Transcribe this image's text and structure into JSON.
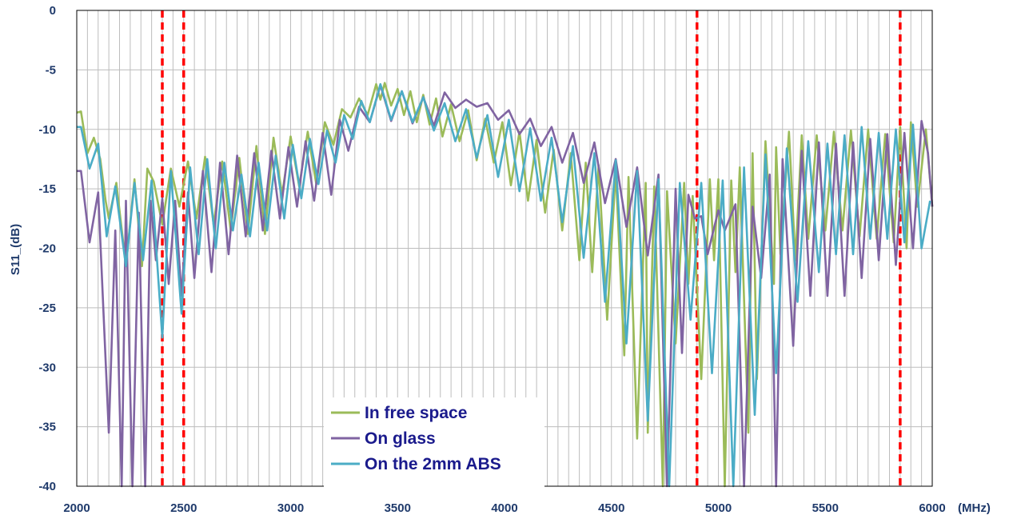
{
  "chart_data": {
    "type": "line",
    "title": "",
    "xlabel": "",
    "x_unit": "(MHz)",
    "ylabel": "S11_(dB)",
    "xlim": [
      2000,
      6000
    ],
    "ylim": [
      -40,
      0
    ],
    "x_ticks": [
      2000,
      2500,
      3000,
      3500,
      4000,
      4500,
      5000,
      5500,
      6000
    ],
    "y_ticks": [
      0,
      -5,
      -10,
      -15,
      -20,
      -25,
      -30,
      -35,
      -40
    ],
    "x_tick_labels": [
      "2000",
      "2500",
      "3000",
      "3500",
      "4000",
      "4500",
      "5000",
      "5500",
      "6000"
    ],
    "y_tick_labels": [
      "0",
      "-5",
      "-10",
      "-15",
      "-20",
      "-25",
      "-30",
      "-35",
      "-40"
    ],
    "minor_x_gridline_step": 50,
    "grid": true,
    "legend_position": "bottom-center",
    "reference_lines": [
      {
        "x": 2400,
        "color": "#ff0000",
        "style": "dashed"
      },
      {
        "x": 2500,
        "color": "#ff0000",
        "style": "dashed"
      },
      {
        "x": 4900,
        "color": "#ff0000",
        "style": "dashed"
      },
      {
        "x": 5850,
        "color": "#ff0000",
        "style": "dashed"
      }
    ],
    "series": [
      {
        "name": "In free space",
        "color": "#9bbb59",
        "x": [
          2000,
          2020,
          2050,
          2080,
          2110,
          2135,
          2150,
          2185,
          2230,
          2270,
          2305,
          2330,
          2360,
          2400,
          2440,
          2480,
          2520,
          2560,
          2600,
          2640,
          2680,
          2720,
          2760,
          2800,
          2840,
          2880,
          2920,
          2960,
          3000,
          3040,
          3080,
          3120,
          3160,
          3200,
          3240,
          3280,
          3320,
          3360,
          3400,
          3420,
          3440,
          3470,
          3500,
          3530,
          3560,
          3590,
          3620,
          3650,
          3680,
          3710,
          3750,
          3790,
          3830,
          3870,
          3910,
          3950,
          3990,
          4030,
          4070,
          4110,
          4150,
          4190,
          4230,
          4270,
          4310,
          4350,
          4380,
          4410,
          4440,
          4480,
          4520,
          4560,
          4580,
          4620,
          4660,
          4670,
          4700,
          4740,
          4760,
          4800,
          4840,
          4860,
          4880,
          4920,
          4960,
          4980,
          5000,
          5030,
          5060,
          5080,
          5100,
          5140,
          5160,
          5180,
          5220,
          5260,
          5270,
          5290,
          5330,
          5360,
          5390,
          5420,
          5460,
          5500,
          5540,
          5580,
          5620,
          5660,
          5700,
          5740,
          5780,
          5820,
          5850,
          5880,
          5900,
          5930,
          5970,
          6000
        ],
        "y": [
          -8.6,
          -8.5,
          -12,
          -10.7,
          -12.5,
          -16,
          -17.5,
          -14.5,
          -21.5,
          -14.2,
          -21.5,
          -13.3,
          -14.4,
          -18,
          -13.3,
          -16.5,
          -12.7,
          -17.5,
          -12.3,
          -18,
          -12.7,
          -18.5,
          -12.4,
          -18.8,
          -11.4,
          -18.8,
          -10.7,
          -15.5,
          -10.6,
          -14.8,
          -10.2,
          -14.6,
          -9.4,
          -11.3,
          -8.3,
          -9,
          -7.4,
          -8.8,
          -6.2,
          -7.5,
          -6.1,
          -8,
          -6.6,
          -8.8,
          -6.8,
          -9.4,
          -7.1,
          -9.6,
          -7.4,
          -10.6,
          -7.9,
          -11,
          -8.4,
          -12.6,
          -9.1,
          -12.8,
          -9.4,
          -14.7,
          -10.2,
          -16,
          -10.9,
          -17,
          -11.7,
          -18.5,
          -12,
          -21,
          -12.8,
          -22,
          -13,
          -26,
          -13.5,
          -29,
          -14,
          -36,
          -14.5,
          -35.5,
          -14.8,
          -40,
          -15.2,
          -28,
          -14.5,
          -23,
          -15.6,
          -31,
          -14.2,
          -21,
          -14.2,
          -40,
          -14.3,
          -22,
          -13.2,
          -35.5,
          -12,
          -31,
          -11,
          -23,
          -11.5,
          -20.5,
          -10.2,
          -21,
          -10.5,
          -19.2,
          -10.5,
          -18.5,
          -10.2,
          -18.5,
          -10.1,
          -19,
          -10,
          -19.2,
          -10.4,
          -19.5,
          -9.8,
          -20,
          -9.4,
          -16.5,
          -10,
          -16.5
        ]
      },
      {
        "name": "On glass",
        "color": "#8064a2",
        "x": [
          2000,
          2020,
          2060,
          2100,
          2150,
          2180,
          2210,
          2230,
          2260,
          2290,
          2320,
          2345,
          2370,
          2400,
          2430,
          2460,
          2490,
          2520,
          2550,
          2590,
          2630,
          2670,
          2710,
          2750,
          2790,
          2830,
          2870,
          2910,
          2950,
          2990,
          3030,
          3070,
          3110,
          3150,
          3190,
          3230,
          3270,
          3320,
          3370,
          3420,
          3470,
          3520,
          3570,
          3620,
          3670,
          3720,
          3770,
          3820,
          3870,
          3920,
          3970,
          4020,
          4070,
          4120,
          4170,
          4220,
          4270,
          4320,
          4370,
          4420,
          4470,
          4520,
          4570,
          4620,
          4670,
          4720,
          4760,
          4800,
          4830,
          4860,
          4890,
          4920,
          4950,
          5000,
          5030,
          5080,
          5120,
          5160,
          5200,
          5240,
          5270,
          5300,
          5350,
          5390,
          5430,
          5470,
          5510,
          5550,
          5590,
          5630,
          5670,
          5710,
          5750,
          5790,
          5830,
          5870,
          5910,
          5950,
          5980,
          6000
        ],
        "y": [
          -13.5,
          -13.5,
          -19.5,
          -15.3,
          -35.5,
          -18.5,
          -40,
          -16,
          -40,
          -17,
          -40,
          -16,
          -21,
          -15.8,
          -23,
          -16,
          -24,
          -15.3,
          -22.5,
          -13.5,
          -22,
          -12.8,
          -20.5,
          -12.2,
          -19,
          -12,
          -18.5,
          -11.8,
          -17.5,
          -11.5,
          -16.5,
          -11,
          -16,
          -10.3,
          -15.5,
          -9.2,
          -11.8,
          -8.1,
          -9.4,
          -6.3,
          -9.3,
          -6.8,
          -9.5,
          -7.3,
          -9.7,
          -6.9,
          -8.2,
          -7.5,
          -8.1,
          -7.8,
          -9.2,
          -8.4,
          -10.4,
          -9.1,
          -11.4,
          -9.8,
          -12.8,
          -10.3,
          -14.5,
          -11.1,
          -16.2,
          -12.5,
          -18.2,
          -13.2,
          -20.6,
          -13.8,
          -40,
          -15,
          -28.8,
          -15.5,
          -17.5,
          -17.3,
          -20.5,
          -16.8,
          -18.5,
          -16.3,
          -40,
          -16.5,
          -22.5,
          -13.8,
          -40,
          -12.5,
          -28.2,
          -11.8,
          -24,
          -11.1,
          -24,
          -11.2,
          -24,
          -11.1,
          -22.5,
          -10.8,
          -21,
          -10.4,
          -21.4,
          -10.3,
          -20,
          -9.3,
          -12,
          -16.5
        ]
      },
      {
        "name": "On the 2mm ABS",
        "color": "#4bacc6",
        "x": [
          2000,
          2020,
          2060,
          2100,
          2140,
          2180,
          2230,
          2270,
          2310,
          2350,
          2400,
          2440,
          2490,
          2530,
          2570,
          2610,
          2650,
          2690,
          2730,
          2770,
          2810,
          2850,
          2890,
          2930,
          2970,
          3010,
          3050,
          3090,
          3130,
          3170,
          3210,
          3250,
          3290,
          3330,
          3370,
          3420,
          3470,
          3520,
          3570,
          3620,
          3670,
          3720,
          3770,
          3820,
          3870,
          3920,
          3970,
          4020,
          4070,
          4120,
          4170,
          4220,
          4270,
          4320,
          4370,
          4420,
          4470,
          4520,
          4570,
          4620,
          4670,
          4720,
          4770,
          4820,
          4870,
          4920,
          4970,
          5020,
          5070,
          5120,
          5170,
          5220,
          5270,
          5320,
          5370,
          5420,
          5470,
          5510,
          5550,
          5590,
          5630,
          5670,
          5710,
          5750,
          5790,
          5830,
          5870,
          5910,
          5950,
          5990
        ],
        "y": [
          -9.8,
          -9.8,
          -13.3,
          -11.2,
          -19,
          -14.8,
          -21.5,
          -14.5,
          -21,
          -14.3,
          -27.5,
          -13.5,
          -25.5,
          -13.2,
          -20.5,
          -12.5,
          -20,
          -12.8,
          -18.5,
          -13.8,
          -19,
          -12.8,
          -18.5,
          -12.2,
          -17.5,
          -11.3,
          -15.8,
          -10.8,
          -14.6,
          -10.1,
          -12.8,
          -8.8,
          -10.8,
          -7.6,
          -9.4,
          -6.2,
          -9.2,
          -6.8,
          -9.4,
          -7.3,
          -10.1,
          -7.8,
          -11,
          -8.3,
          -12.4,
          -8.8,
          -14,
          -9.2,
          -15.2,
          -9.9,
          -16,
          -10.7,
          -17.8,
          -11.4,
          -20.8,
          -12,
          -24.5,
          -12.6,
          -28,
          -13.5,
          -34.5,
          -14.2,
          -40,
          -14.5,
          -26,
          -14.5,
          -30.5,
          -14.3,
          -40,
          -13.2,
          -34,
          -12.1,
          -30.5,
          -11.6,
          -24.5,
          -11,
          -22,
          -11.2,
          -20.5,
          -10.5,
          -20.5,
          -9.8,
          -19.2,
          -10.3,
          -19.2,
          -10,
          -19.5,
          -9.6,
          -20,
          -16
        ]
      }
    ]
  }
}
